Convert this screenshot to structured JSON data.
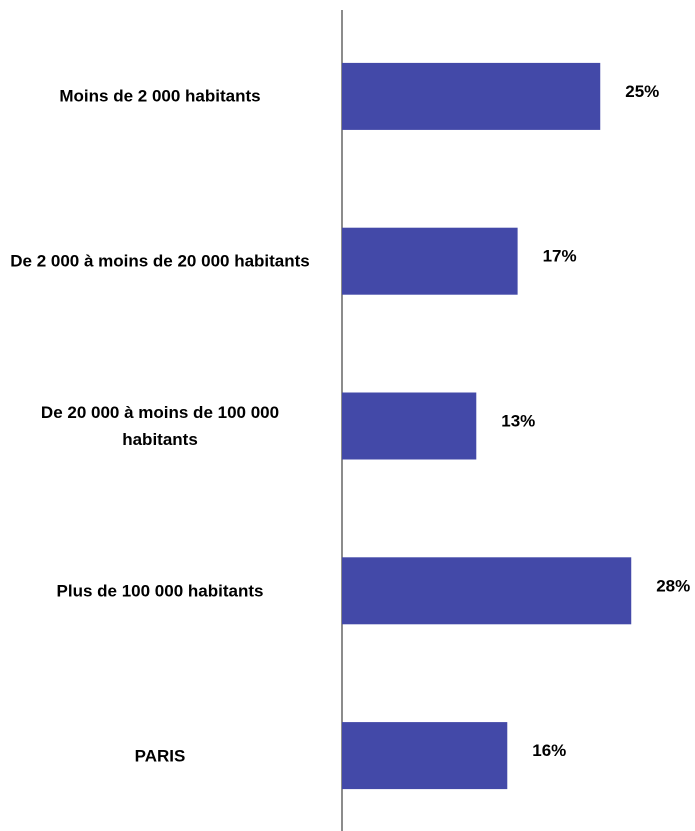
{
  "chart_data": {
    "type": "bar",
    "orientation": "horizontal",
    "categories": [
      "Moins de 2 000 habitants",
      "De 2 000 à moins de 20 000 habitants",
      "De 20 000 à moins de 100 000 habitants",
      "Plus de 100 000 habitants",
      "PARIS"
    ],
    "values": [
      25,
      17,
      13,
      28,
      16
    ],
    "value_labels": [
      "25%",
      "17%",
      "13%",
      "28%",
      "16%"
    ],
    "color": "#4349a8"
  }
}
